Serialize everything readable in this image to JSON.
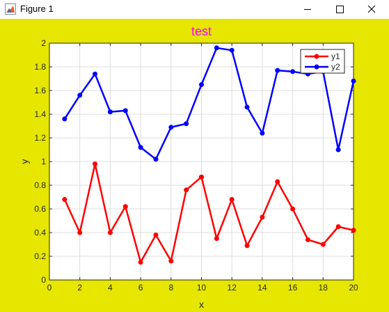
{
  "window": {
    "title": "Figure 1",
    "icon": "matlab-figure-icon",
    "background_color": "#e6e600",
    "controls": [
      "minimize-icon",
      "maximize-icon",
      "close-icon"
    ]
  },
  "chart_data": {
    "type": "line",
    "title": "test",
    "title_color": "#ff00ff",
    "xlabel": "x",
    "ylabel": "y",
    "xlim": [
      0,
      20
    ],
    "ylim": [
      0,
      2
    ],
    "xticks": [
      "0",
      "2",
      "4",
      "6",
      "8",
      "10",
      "12",
      "14",
      "16",
      "18",
      "20"
    ],
    "yticks": [
      "0",
      "0.2",
      "0.4",
      "0.6",
      "0.8",
      "1",
      "1.2",
      "1.4",
      "1.6",
      "1.8",
      "2"
    ],
    "grid": true,
    "legend_position": "top-right",
    "x": [
      1,
      2,
      3,
      4,
      5,
      6,
      7,
      8,
      9,
      10,
      11,
      12,
      13,
      14,
      15,
      16,
      17,
      18,
      19,
      20
    ],
    "series": [
      {
        "name": "y1",
        "color": "#ff0000",
        "values": [
          0.68,
          0.4,
          0.98,
          0.4,
          0.62,
          0.15,
          0.38,
          0.16,
          0.76,
          0.87,
          0.35,
          0.68,
          0.29,
          0.53,
          0.83,
          0.6,
          0.34,
          0.3,
          0.45,
          0.42
        ]
      },
      {
        "name": "y2",
        "color": "#0000ff",
        "values": [
          1.36,
          1.56,
          1.74,
          1.42,
          1.43,
          1.12,
          1.02,
          1.29,
          1.32,
          1.65,
          1.96,
          1.94,
          1.46,
          1.24,
          1.77,
          1.76,
          1.74,
          1.76,
          1.1,
          1.68
        ]
      }
    ]
  }
}
